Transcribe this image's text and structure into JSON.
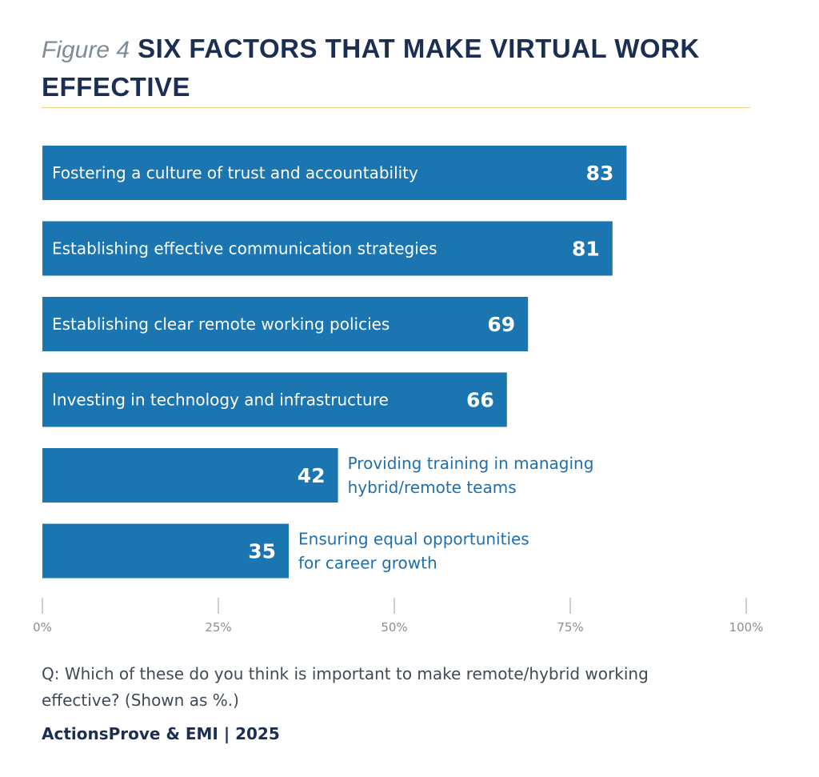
{
  "header": {
    "figure_label": "Figure 4",
    "title": "SIX FACTORS THAT MAKE VIRTUAL WORK EFFECTIVE"
  },
  "chart_data": {
    "type": "bar",
    "orientation": "horizontal",
    "categories": [
      "Fostering a culture of trust and accountability",
      "Establishing effective communication strategies",
      "Establishing clear remote working policies",
      "Investing in technology and infrastructure",
      "Providing training in managing hybrid/remote teams",
      "Ensuring equal opportunities for career growth"
    ],
    "label_lines": [
      [
        "Fostering a culture of trust and accountability"
      ],
      [
        "Establishing effective communication strategies"
      ],
      [
        "Establishing clear remote working policies"
      ],
      [
        "Investing in technology and infrastructure"
      ],
      [
        "Providing training in managing",
        "hybrid/remote teams"
      ],
      [
        "Ensuring equal opportunities",
        "for career growth"
      ]
    ],
    "values": [
      83,
      81,
      69,
      66,
      42,
      35
    ],
    "xlim": [
      0,
      100
    ],
    "ticks": [
      0,
      25,
      50,
      75,
      100
    ],
    "tick_labels": [
      "0%",
      "25%",
      "50%",
      "75%",
      "100%"
    ],
    "grid": false,
    "bar_color": "#1a75b1"
  },
  "footer": {
    "question": "Q: Which of these do you think is important to make remote/hybrid working effective? (Shown as %.)",
    "source": "ActionsProve & EMI | 2025"
  },
  "colors": {
    "title": "#1b2f55",
    "figure_label": "#7f8b96",
    "rule": "#f3cd83",
    "bar": "#1a75b1",
    "outside_label": "#1e6fb0",
    "tick": "#8a8f94"
  }
}
